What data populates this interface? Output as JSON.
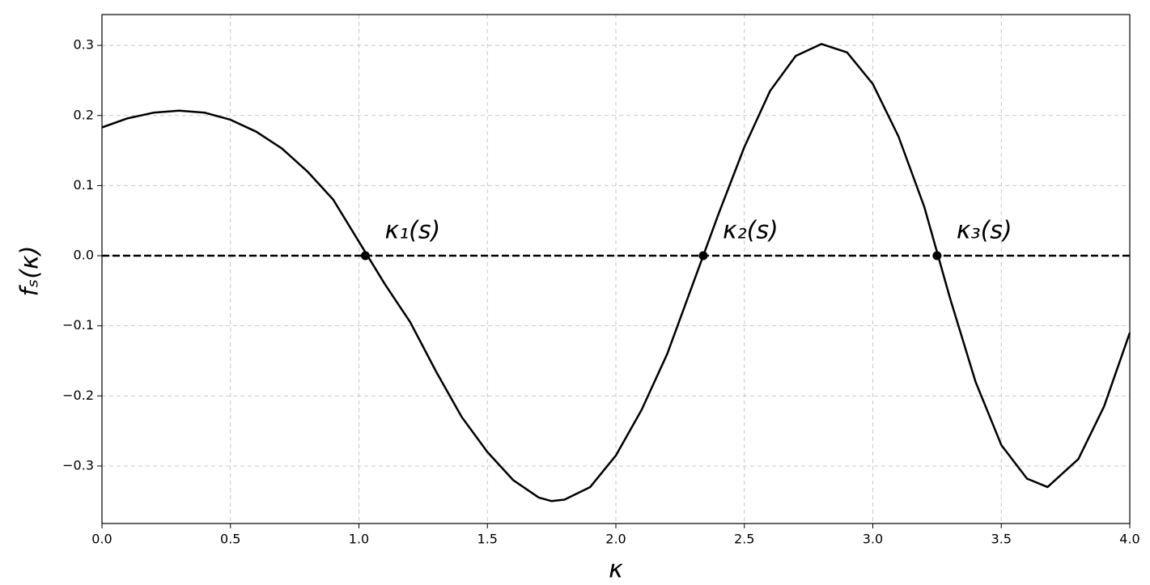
{
  "chart_data": {
    "type": "line",
    "xlabel": "κ",
    "ylabel": "fₛ(κ)",
    "x": [
      0,
      0.1,
      0.2,
      0.3,
      0.4,
      0.5,
      0.6,
      0.7,
      0.8,
      0.9,
      1.0,
      1.1,
      1.2,
      1.3,
      1.4,
      1.5,
      1.6,
      1.7,
      1.75,
      1.8,
      1.9,
      2.0,
      2.1,
      2.2,
      2.3,
      2.4,
      2.5,
      2.6,
      2.7,
      2.8,
      2.9,
      3.0,
      3.1,
      3.2,
      3.3,
      3.4,
      3.5,
      3.6,
      3.68,
      3.8,
      3.9,
      4.0
    ],
    "values": [
      0.183,
      0.196,
      0.204,
      0.207,
      0.204,
      0.194,
      0.177,
      0.153,
      0.12,
      0.08,
      0.02,
      -0.04,
      -0.095,
      -0.165,
      -0.23,
      -0.28,
      -0.32,
      -0.345,
      -0.35,
      -0.348,
      -0.33,
      -0.285,
      -0.22,
      -0.14,
      -0.04,
      0.06,
      0.155,
      0.235,
      0.285,
      0.302,
      0.29,
      0.245,
      0.17,
      0.07,
      -0.06,
      -0.18,
      -0.27,
      -0.318,
      -0.33,
      -0.29,
      -0.215,
      -0.11
    ],
    "color": "#000000",
    "reference_line": {
      "y": 0,
      "color": "#000000",
      "style": "dashed"
    },
    "points": {
      "x": [
        1.025,
        2.34,
        3.25
      ],
      "y": [
        0,
        0,
        0
      ],
      "labels": [
        "κ₁(s)",
        "κ₂(s)",
        "κ₃(s)"
      ]
    },
    "xlim": [
      0,
      4
    ],
    "ylim": [
      -0.382,
      0.344
    ],
    "xticks": [
      {
        "value": 0,
        "label": "0.0"
      },
      0.5,
      {
        "value": 1,
        "label": "1.0"
      },
      1.5,
      {
        "value": 2,
        "label": "2.0"
      },
      2.5,
      {
        "value": 3,
        "label": "3.0"
      },
      3.5,
      {
        "value": 4,
        "label": "4.0"
      }
    ],
    "yticks": [
      {
        "value": -0.3,
        "label": "−0.3"
      },
      {
        "value": -0.2,
        "label": "−0.2"
      },
      {
        "value": -0.1,
        "label": "−0.1"
      },
      {
        "value": 0,
        "label": "0.0"
      },
      0.1,
      0.2,
      0.3
    ],
    "grid": true
  }
}
